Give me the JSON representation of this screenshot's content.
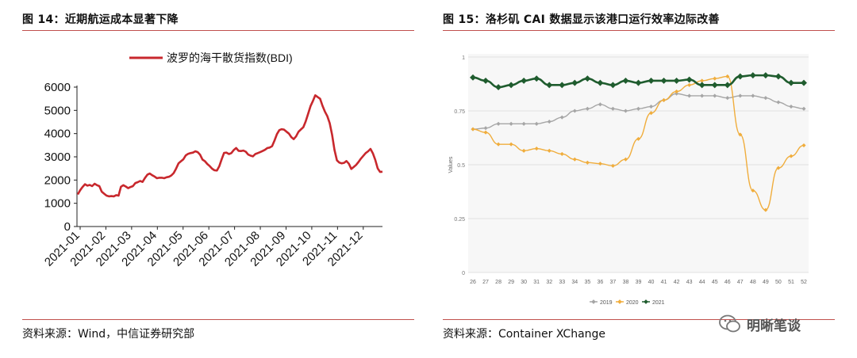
{
  "left": {
    "title": "图 14：近期航运成本显著下降",
    "source": "资料来源：Wind，中信证券研究部"
  },
  "right": {
    "title": "图 15：洛杉矶 CAI 数据显示该港口运行效率边际改善",
    "source": "资料来源：Container XChange"
  },
  "watermark": {
    "text": "明晰笔谈"
  },
  "colors": {
    "bdi": "#c8282d",
    "s2019": "#a6a6a6",
    "s2020": "#f0ad3c",
    "s2021": "#1f5c2e",
    "rule": "#c0504d"
  },
  "chart_data": [
    {
      "type": "line",
      "legend_position": "top",
      "series": [
        {
          "name": "波罗的海干散货指数(BDI)",
          "values": [
            1380,
            1560,
            1700,
            1820,
            1760,
            1790,
            1740,
            1840,
            1780,
            1740,
            1500,
            1410,
            1330,
            1300,
            1310,
            1300,
            1350,
            1330,
            1710,
            1780,
            1720,
            1650,
            1700,
            1740,
            1870,
            1910,
            1960,
            1920,
            2090,
            2230,
            2280,
            2210,
            2150,
            2080,
            2100,
            2100,
            2080,
            2120,
            2140,
            2200,
            2300,
            2500,
            2720,
            2810,
            2890,
            3060,
            3130,
            3160,
            3180,
            3240,
            3200,
            3090,
            2880,
            2810,
            2690,
            2600,
            2490,
            2420,
            2410,
            2600,
            2900,
            3170,
            3180,
            3120,
            3160,
            3290,
            3380,
            3260,
            3250,
            3270,
            3220,
            3100,
            3050,
            3020,
            3120,
            3160,
            3200,
            3250,
            3300,
            3380,
            3400,
            3460,
            3700,
            3980,
            4150,
            4190,
            4170,
            4080,
            4000,
            3850,
            3760,
            3880,
            4080,
            4180,
            4270,
            4520,
            4850,
            5180,
            5400,
            5650,
            5570,
            5500,
            5200,
            4950,
            4750,
            4450,
            3950,
            3300,
            2850,
            2750,
            2720,
            2740,
            2820,
            2700,
            2480,
            2560,
            2650,
            2780,
            2920,
            3040,
            3160,
            3240,
            3340,
            3150,
            2870,
            2500,
            2350,
            2360
          ]
        }
      ],
      "x_ticks": [
        "2021-01",
        "2021-02",
        "2021-03",
        "2021-04",
        "2021-05",
        "2021-06",
        "2021-07",
        "2021-08",
        "2021-09",
        "2021-10",
        "2021-11",
        "2021-12"
      ],
      "y_ticks": [
        "0",
        "1000",
        "2000",
        "3000",
        "4000",
        "5000",
        "6000"
      ],
      "ylim": [
        0,
        6000
      ]
    },
    {
      "type": "line",
      "ylabel": "Values",
      "ylim": [
        0,
        1
      ],
      "y_ticks": [
        "0",
        "0.25",
        "0.5",
        "0.75",
        "1"
      ],
      "categories": [
        "26",
        "27",
        "28",
        "29",
        "30",
        "31",
        "32",
        "33",
        "34",
        "35",
        "36",
        "37",
        "38",
        "39",
        "40",
        "41",
        "42",
        "43",
        "44",
        "45",
        "46",
        "47",
        "48",
        "49",
        "50",
        "51",
        "52"
      ],
      "series": [
        {
          "name": "2019",
          "values": [
            0.665,
            0.67,
            0.69,
            0.69,
            0.69,
            0.69,
            0.7,
            0.72,
            0.75,
            0.76,
            0.78,
            0.76,
            0.75,
            0.76,
            0.77,
            0.8,
            0.83,
            0.82,
            0.82,
            0.82,
            0.81,
            0.82,
            0.82,
            0.81,
            0.79,
            0.77,
            0.76
          ]
        },
        {
          "name": "2020",
          "values": [
            0.665,
            0.65,
            0.595,
            0.595,
            0.565,
            0.575,
            0.565,
            0.55,
            0.525,
            0.51,
            0.505,
            0.495,
            0.525,
            0.62,
            0.74,
            0.8,
            0.84,
            0.87,
            0.89,
            0.9,
            0.91,
            0.64,
            0.38,
            0.29,
            0.485,
            0.54,
            0.59
          ]
        },
        {
          "name": "2021",
          "values": [
            0.905,
            0.89,
            0.86,
            0.87,
            0.89,
            0.9,
            0.87,
            0.87,
            0.88,
            0.9,
            0.88,
            0.87,
            0.89,
            0.88,
            0.89,
            0.89,
            0.89,
            0.895,
            0.87,
            0.87,
            0.87,
            0.91,
            0.915,
            0.915,
            0.91,
            0.88,
            0.88
          ]
        }
      ]
    }
  ]
}
